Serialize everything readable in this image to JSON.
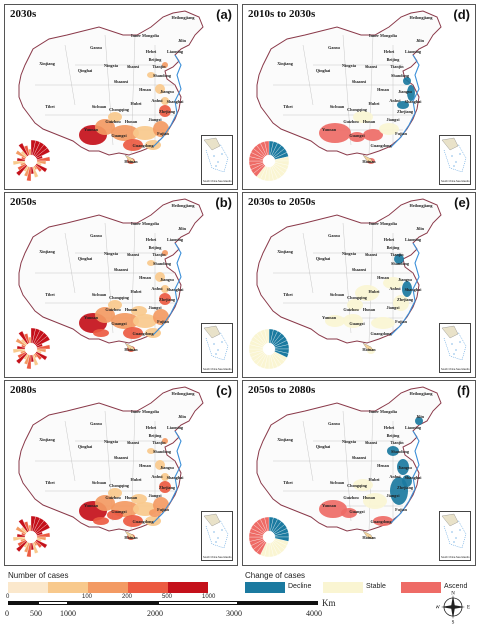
{
  "panels": [
    {
      "title": "2030s",
      "letter": "(a)",
      "mode": "cases"
    },
    {
      "title": "2010s to 2030s",
      "letter": "(d)",
      "mode": "change"
    },
    {
      "title": "2050s",
      "letter": "(b)",
      "mode": "cases"
    },
    {
      "title": "2030s to 2050s",
      "letter": "(e)",
      "mode": "change"
    },
    {
      "title": "2080s",
      "letter": "(c)",
      "mode": "cases"
    },
    {
      "title": "2050s to 2080s",
      "letter": "(f)",
      "mode": "change"
    }
  ],
  "provinces": [
    "Heilongjiang",
    "Jilin",
    "Inner Mongolia",
    "Xinjiang",
    "Gansu",
    "Qinghai",
    "Tibet",
    "Sichuan",
    "Yunnan",
    "Guizhou",
    "Guangxi",
    "Hunan",
    "Hubei",
    "Henan",
    "Anhui",
    "Shanxi",
    "Shaanxi",
    "Hebei",
    "Beijing",
    "Tianjin",
    "Shandong",
    "Jiangxi",
    "Fujian",
    "Guangdong",
    "Hainan",
    "Chongqing",
    "Ningxia",
    "Zhejiang",
    "Jiangsu",
    "Liaoning",
    "Shanghai"
  ],
  "inset_label": "South China Sea Islands",
  "legend": {
    "cases_title": "Number of cases",
    "cases_ticks": [
      "0",
      "100",
      "200",
      "500",
      "1000"
    ],
    "cases_colors": [
      "#fbe8cc",
      "#f8c98c",
      "#f39a63",
      "#ec5a41",
      "#c4101a"
    ],
    "change_title": "Change of cases",
    "change_items": [
      {
        "label": "Decline",
        "color": "#1b7aa0"
      },
      {
        "label": "Stable",
        "color": "#faf5d2"
      },
      {
        "label": "Ascend",
        "color": "#ee6b66"
      }
    ]
  },
  "scale": {
    "ticks": [
      "0",
      "500",
      "1000",
      "2000",
      "3000",
      "4000"
    ],
    "unit": "Km"
  },
  "compass": [
    "N",
    "E",
    "S",
    "W"
  ]
}
